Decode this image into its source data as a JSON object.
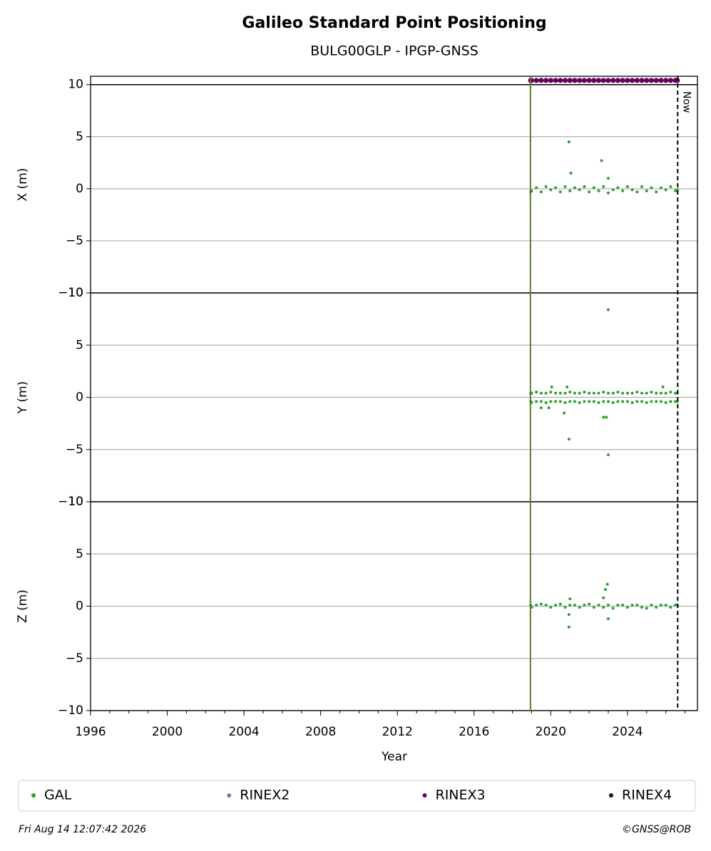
{
  "chart_data": [
    {
      "type": "scatter",
      "title": "Galileo Standard Point Positioning",
      "subtitle": "BULG00GLP - IPGP-GNSS",
      "ylabel": "X (m)",
      "ylim": [
        -10,
        10.8
      ],
      "yticks": [
        {
          "value": -10,
          "label": "−10"
        },
        {
          "value": -5,
          "label": "−5"
        },
        0,
        5,
        10
      ],
      "grid": true,
      "hline": 10,
      "series": [
        {
          "name": "GAL",
          "color": "#2ca02c",
          "x": [
            2018.95,
            2019,
            2019.25,
            2019.5,
            2019.75,
            2020,
            2020.25,
            2020.5,
            2020.75,
            2021,
            2021.25,
            2021.5,
            2021.75,
            2022,
            2022.25,
            2022.5,
            2022.75,
            2023,
            2023.25,
            2023.5,
            2023.75,
            2024,
            2024.25,
            2024.5,
            2024.75,
            2025,
            2025.25,
            2025.5,
            2025.75,
            2026,
            2026.25,
            2026.5,
            2026.6,
            2020.95,
            2021.05,
            2022.65,
            2023.0
          ],
          "values": [
            -0.3,
            -0.2,
            0.1,
            -0.3,
            0.2,
            -0.1,
            0.1,
            -0.3,
            0.2,
            -0.2,
            0.1,
            -0.1,
            0.2,
            -0.3,
            0.1,
            -0.2,
            0.2,
            -0.4,
            -0.1,
            0.1,
            -0.2,
            0.2,
            -0.1,
            -0.3,
            0.2,
            -0.2,
            0.1,
            -0.3,
            0.1,
            -0.1,
            0.2,
            -0.2,
            -0.1,
            4.5,
            1.5,
            2.7,
            1.0
          ]
        },
        {
          "name": "RINEX2",
          "color": "#8073ac",
          "x": [],
          "values": []
        },
        {
          "name": "RINEX3",
          "color": "#67005f",
          "x": [
            2018.95,
            2019,
            2019.25,
            2019.5,
            2019.75,
            2020,
            2020.25,
            2020.5,
            2020.75,
            2021,
            2021.25,
            2021.5,
            2021.75,
            2022,
            2022.25,
            2022.5,
            2022.75,
            2023,
            2023.25,
            2023.5,
            2023.75,
            2024,
            2024.25,
            2024.5,
            2024.75,
            2025,
            2025.25,
            2025.5,
            2025.75,
            2026,
            2026.25,
            2026.5,
            2026.6
          ],
          "values": [
            10.4,
            10.4,
            10.4,
            10.4,
            10.4,
            10.4,
            10.4,
            10.4,
            10.4,
            10.4,
            10.4,
            10.4,
            10.4,
            10.4,
            10.4,
            10.4,
            10.4,
            10.4,
            10.4,
            10.4,
            10.4,
            10.4,
            10.4,
            10.4,
            10.4,
            10.4,
            10.4,
            10.4,
            10.4,
            10.4,
            10.4,
            10.4,
            10.4
          ]
        },
        {
          "name": "RINEX4",
          "color": "#2d0a22",
          "x": [],
          "values": []
        }
      ]
    },
    {
      "type": "scatter",
      "ylabel": "Y (m)",
      "ylim": [
        -10,
        10
      ],
      "yticks": [
        {
          "value": -10,
          "label": "−10"
        },
        {
          "value": -5,
          "label": "−5"
        },
        0,
        5,
        10
      ],
      "grid": true,
      "series": [
        {
          "name": "GAL",
          "color": "#2ca02c",
          "x": [
            2018.95,
            2019,
            2019.25,
            2019.5,
            2019.75,
            2020,
            2020.25,
            2020.5,
            2020.75,
            2021,
            2021.25,
            2021.5,
            2021.75,
            2022,
            2022.25,
            2022.5,
            2022.75,
            2023,
            2023.25,
            2023.5,
            2023.75,
            2024,
            2024.25,
            2024.5,
            2024.75,
            2025,
            2025.25,
            2025.5,
            2025.75,
            2026,
            2026.25,
            2026.5,
            2026.6,
            2018.95,
            2019,
            2019.25,
            2019.5,
            2019.75,
            2020,
            2020.25,
            2020.5,
            2020.75,
            2021,
            2021.25,
            2021.5,
            2021.75,
            2022,
            2022.25,
            2022.5,
            2022.75,
            2023,
            2023.25,
            2023.5,
            2023.75,
            2024,
            2024.25,
            2024.5,
            2024.75,
            2025,
            2025.25,
            2025.5,
            2025.75,
            2026,
            2026.25,
            2026.5,
            2026.6,
            2023.0,
            2020.95,
            2023.0,
            2022.75,
            2022.9,
            2020.7,
            2019.9,
            2020.85,
            2020.05,
            2025.85,
            2019.5
          ],
          "values": [
            0.4,
            0.4,
            0.5,
            0.4,
            0.4,
            0.5,
            0.4,
            0.4,
            0.4,
            0.5,
            0.4,
            0.4,
            0.5,
            0.4,
            0.4,
            0.4,
            0.5,
            0.4,
            0.4,
            0.5,
            0.4,
            0.4,
            0.4,
            0.5,
            0.4,
            0.4,
            0.5,
            0.4,
            0.4,
            0.4,
            0.5,
            0.4,
            0.4,
            -0.4,
            -0.5,
            -0.4,
            -0.4,
            -0.5,
            -0.4,
            -0.4,
            -0.4,
            -0.5,
            -0.4,
            -0.4,
            -0.5,
            -0.4,
            -0.4,
            -0.4,
            -0.5,
            -0.4,
            -0.4,
            -0.5,
            -0.4,
            -0.4,
            -0.4,
            -0.5,
            -0.4,
            -0.4,
            -0.5,
            -0.4,
            -0.4,
            -0.4,
            -0.5,
            -0.4,
            -0.4,
            -0.4,
            8.4,
            -4.0,
            -5.5,
            -1.9,
            -1.9,
            -1.5,
            -1.0,
            1.0,
            1.0,
            1.0,
            -1.0
          ]
        }
      ]
    },
    {
      "type": "scatter",
      "ylabel": "Z (m)",
      "xlabel": "Year",
      "ylim": [
        -10,
        10
      ],
      "yticks": [
        {
          "value": -10,
          "label": "−10"
        },
        {
          "value": -5,
          "label": "−5"
        },
        0,
        5,
        10
      ],
      "grid": true,
      "series": [
        {
          "name": "GAL",
          "color": "#2ca02c",
          "x": [
            2018.95,
            2019,
            2019.25,
            2019.5,
            2019.75,
            2020,
            2020.25,
            2020.5,
            2020.75,
            2021,
            2021.25,
            2021.5,
            2021.75,
            2022,
            2022.25,
            2022.5,
            2022.75,
            2023,
            2023.25,
            2023.5,
            2023.75,
            2024,
            2024.25,
            2024.5,
            2024.75,
            2025,
            2025.25,
            2025.5,
            2025.75,
            2026,
            2026.25,
            2026.5,
            2026.6,
            2020.95,
            2020.95,
            2021.0,
            2022.95,
            2022.85,
            2022.75,
            2023.0
          ],
          "values": [
            0.1,
            -0.1,
            0.1,
            0.2,
            0.1,
            -0.1,
            0.1,
            0.2,
            -0.1,
            0.1,
            0.1,
            -0.1,
            0.1,
            0.2,
            -0.1,
            0.1,
            -0.1,
            0.1,
            -0.2,
            0.1,
            0.1,
            -0.1,
            0.1,
            0.1,
            -0.1,
            -0.2,
            0.1,
            -0.1,
            0.1,
            0.1,
            -0.1,
            0.1,
            0.1,
            -2.0,
            -0.8,
            0.7,
            2.1,
            1.6,
            0.8,
            -1.2
          ]
        }
      ]
    }
  ],
  "xlim": [
    1996,
    2027.65
  ],
  "xticks": [
    1996,
    2000,
    2004,
    2008,
    2012,
    2016,
    2020,
    2024
  ],
  "xminorticks": [
    1997,
    1998,
    1999,
    2001,
    2002,
    2003,
    2005,
    2006,
    2007,
    2009,
    2010,
    2011,
    2013,
    2014,
    2015,
    2017,
    2018,
    2019,
    2021,
    2022,
    2023,
    2025,
    2026,
    2027
  ],
  "start_line": 2018.94,
  "now_line": 2026.62,
  "now_label": "Now",
  "legend_corner": "bottom",
  "footer": {
    "left": "Fri Aug 14 12:07:42 2026",
    "right": "©GNSS@ROB"
  }
}
